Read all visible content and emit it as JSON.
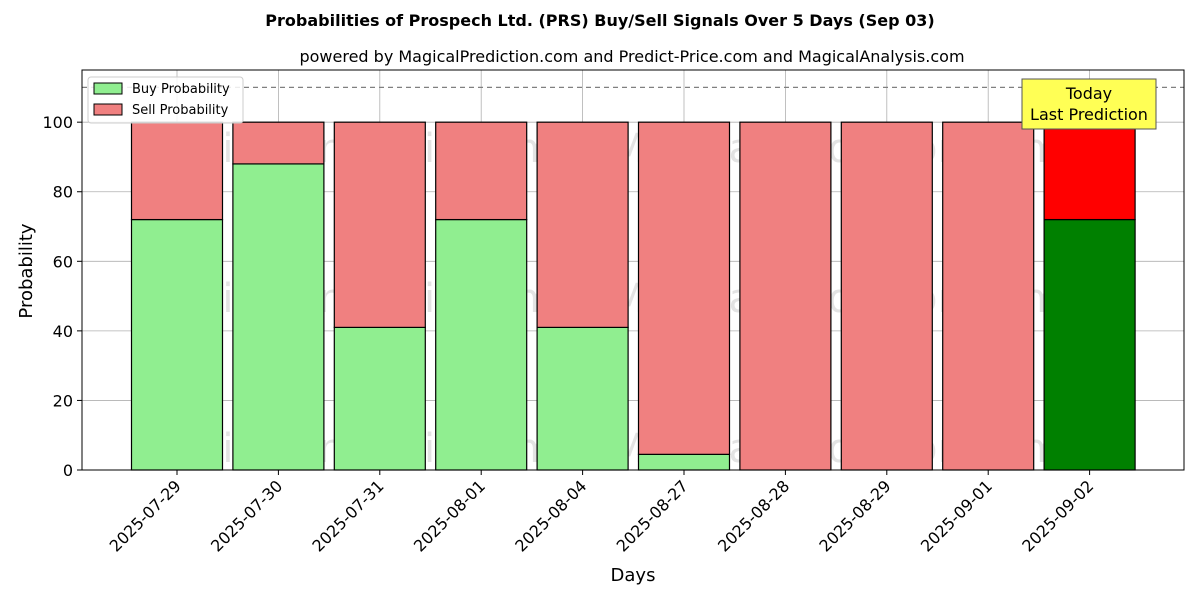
{
  "chart_data": {
    "type": "bar",
    "stacked": true,
    "title": "Probabilities of Prospech Ltd. (PRS) Buy/Sell Signals Over 5 Days (Sep 03)",
    "subtitle": "powered by MagicalPrediction.com and Predict-Price.com and MagicalAnalysis.com",
    "xlabel": "Days",
    "ylabel": "Probability",
    "ylim": [
      0,
      115
    ],
    "yticks": [
      0,
      20,
      40,
      60,
      80,
      100
    ],
    "grid": true,
    "legend_position": "top-left",
    "categories": [
      "2025-07-29",
      "2025-07-30",
      "2025-07-31",
      "2025-08-01",
      "2025-08-04",
      "2025-08-27",
      "2025-08-28",
      "2025-08-29",
      "2025-09-01",
      "2025-09-02"
    ],
    "series": [
      {
        "name": "Buy Probability",
        "values": [
          72,
          88,
          41,
          72,
          41,
          4.5,
          0,
          0,
          0,
          72
        ],
        "color": "#90ee90",
        "last_color": "#008000"
      },
      {
        "name": "Sell Probability",
        "values": [
          28,
          12,
          59,
          28,
          59,
          95.5,
          100,
          100,
          100,
          28
        ],
        "color": "#f08080",
        "last_color": "#ff0000"
      }
    ],
    "reference_line": {
      "y": 110,
      "style": "dashed",
      "color": "#808080"
    },
    "annotation": {
      "lines": [
        "Today",
        "Last Prediction"
      ],
      "background": "#ffff55"
    },
    "watermarks": [
      "MagicalAnalysis.com",
      "MagicalPrediction.com"
    ]
  }
}
